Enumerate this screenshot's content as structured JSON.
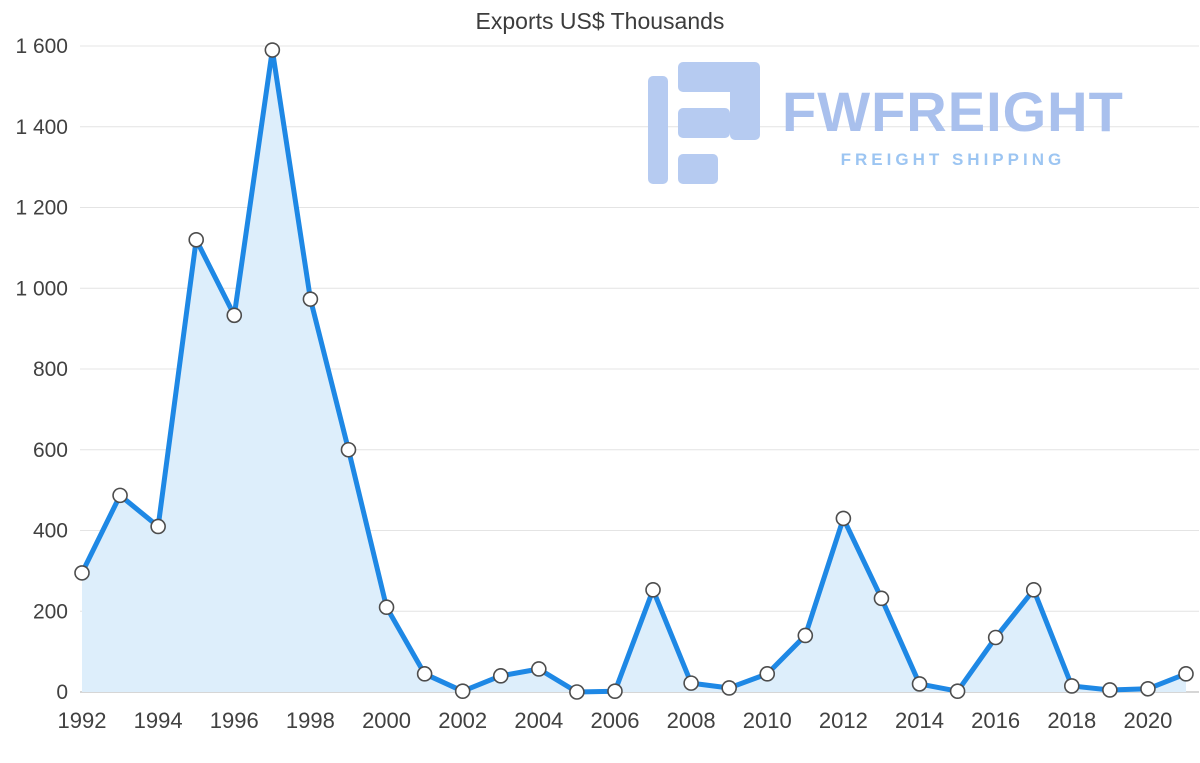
{
  "chart_data": {
    "type": "area",
    "title": "Exports US$ Thousands",
    "xlabel": "",
    "ylabel": "",
    "x": [
      1992,
      1993,
      1994,
      1995,
      1996,
      1997,
      1998,
      1999,
      2000,
      2001,
      2002,
      2003,
      2004,
      2005,
      2006,
      2007,
      2008,
      2009,
      2010,
      2011,
      2012,
      2013,
      2014,
      2015,
      2016,
      2017,
      2018,
      2019,
      2020,
      2021
    ],
    "values": [
      295,
      487,
      410,
      1120,
      933,
      1590,
      973,
      600,
      210,
      45,
      2,
      40,
      57,
      0,
      2,
      253,
      22,
      10,
      45,
      140,
      430,
      232,
      20,
      2,
      135,
      253,
      15,
      5,
      8,
      45
    ],
    "series_name": "Exports US$ Thousands",
    "ylim": [
      0,
      1600
    ],
    "ytick_values": [
      0,
      200,
      400,
      600,
      800,
      1000,
      1200,
      1400,
      1600
    ],
    "ytick_labels": [
      "0",
      "200",
      "400",
      "600",
      "800",
      "1 000",
      "1 200",
      "1 400",
      "1 600"
    ],
    "xtick_labels": [
      "1992",
      "1994",
      "1996",
      "1998",
      "2000",
      "2002",
      "2004",
      "2006",
      "2008",
      "2010",
      "2012",
      "2014",
      "2016",
      "2018",
      "2020"
    ],
    "grid": "horizontal",
    "legend": "none",
    "line_color": "#1e88e5",
    "area_color": "#ddeefb",
    "marker_fill": "#ffffff",
    "marker_stroke": "#4d4d4d",
    "grid_color": "#e4e4e4",
    "axis_line_color": "#c9c9c9",
    "tick_label_color": "#414141",
    "title_color": "#3c3c3c"
  },
  "watermark": {
    "brand": "FWFREIGHT",
    "tagline": "FREIGHT SHIPPING",
    "brand_color": "#a9c0ed",
    "tagline_color": "#9cc5f2",
    "icon_color": "#b6cbf1"
  }
}
